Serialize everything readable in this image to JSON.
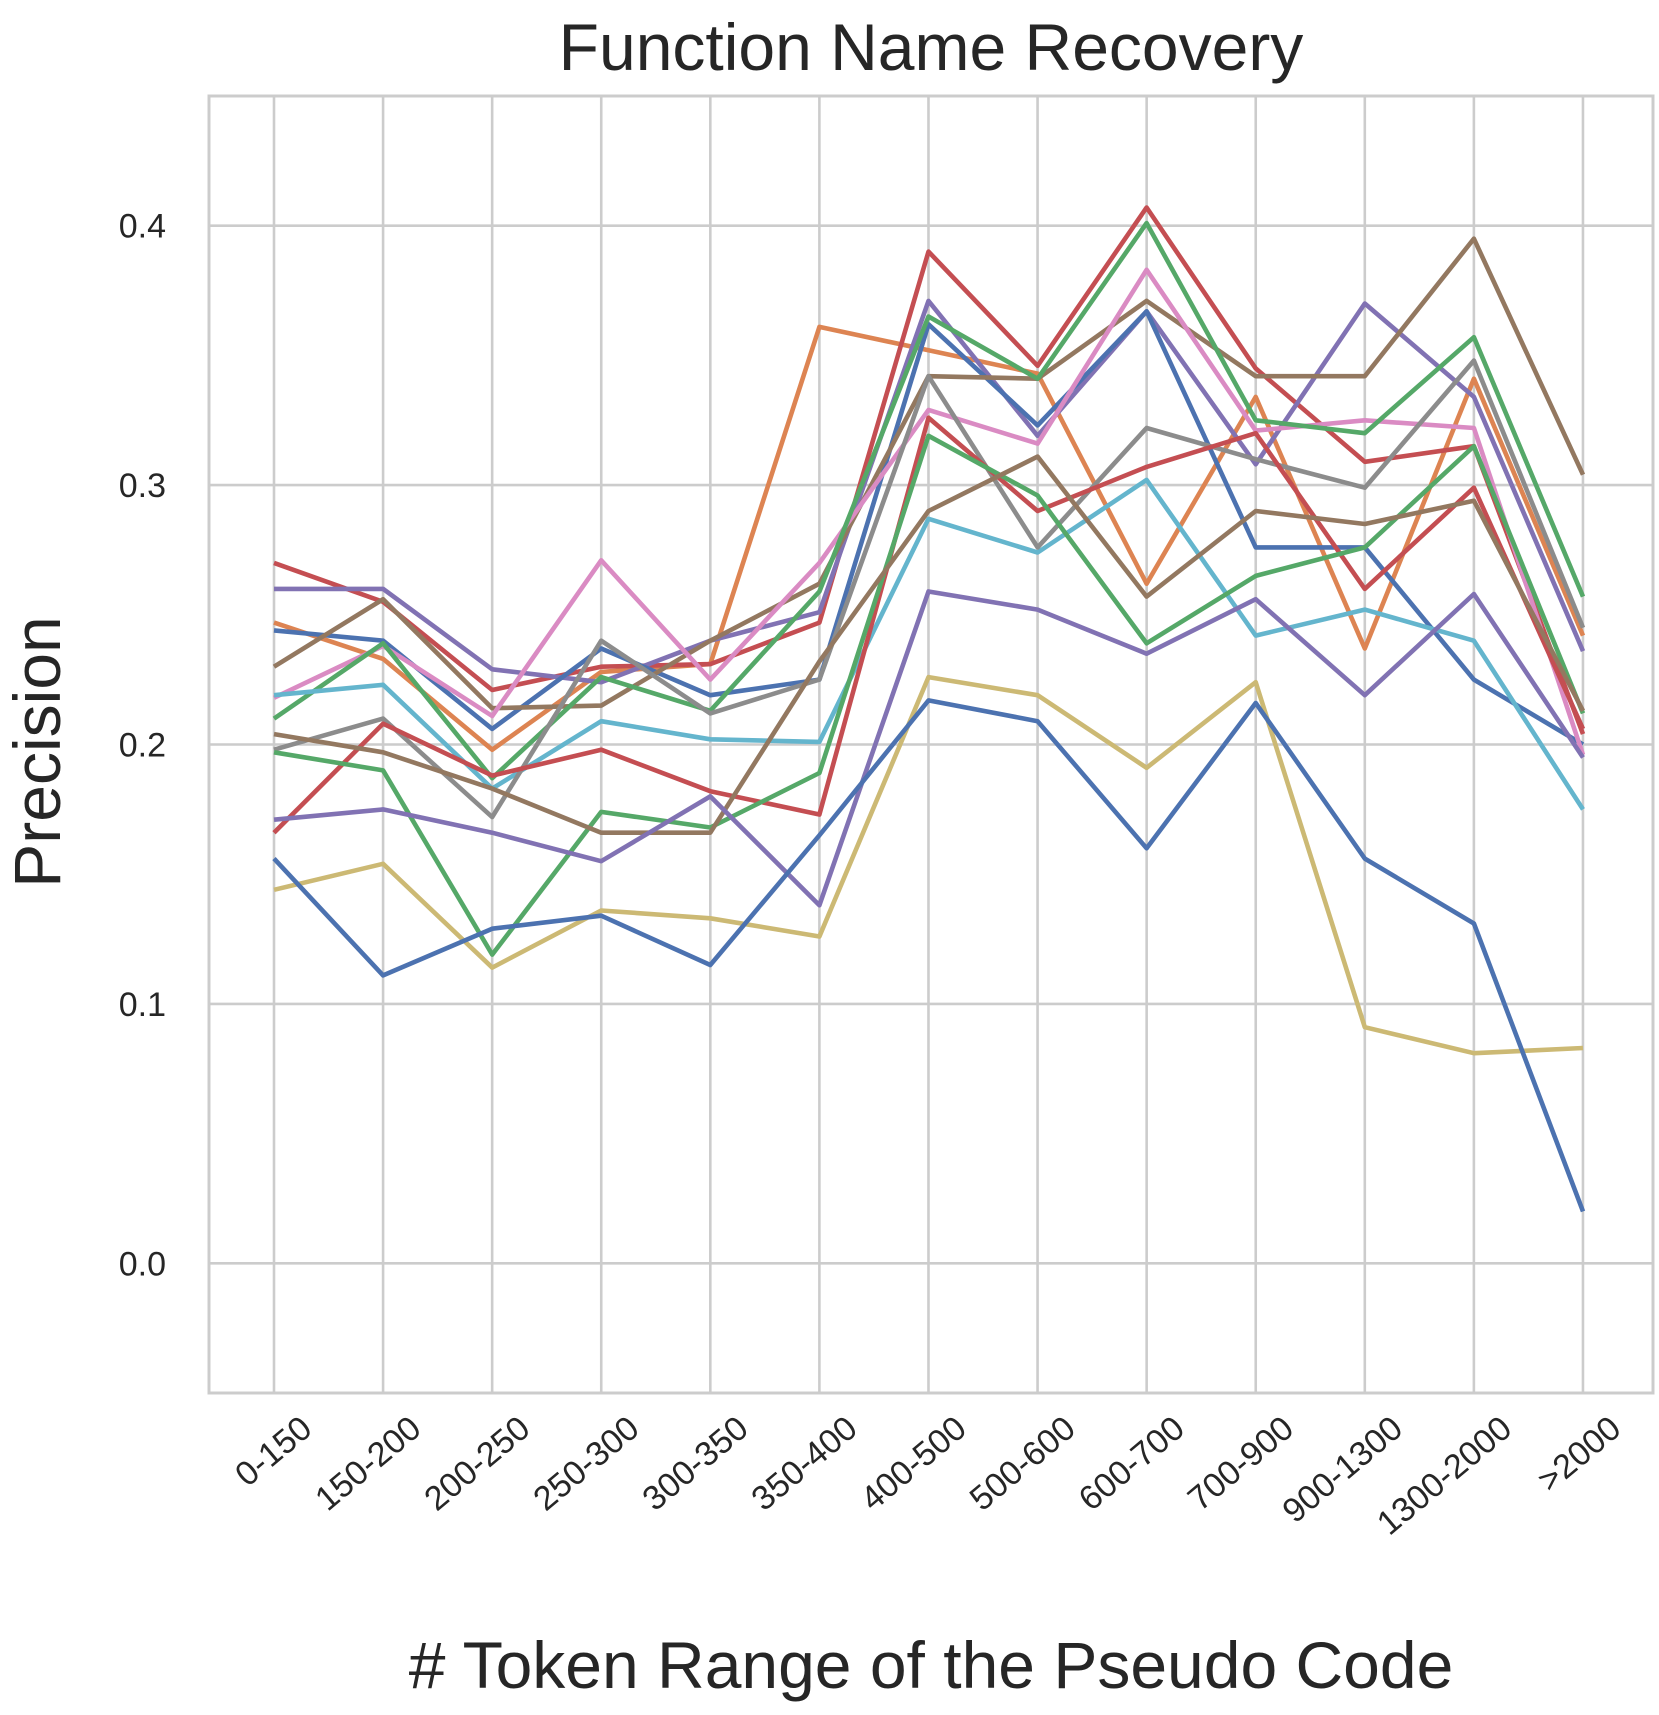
{
  "chart_data": {
    "type": "line",
    "title": "Function Name Recovery",
    "xlabel": "# Token Range of the Pseudo Code",
    "ylabel": "Precision",
    "categories": [
      "0-150",
      "150-200",
      "200-250",
      "250-300",
      "300-350",
      "350-400",
      "400-500",
      "500-600",
      "600-700",
      "700-900",
      "900-1300",
      "1300-2000",
      ">2000"
    ],
    "ylim": [
      -0.05,
      0.45
    ],
    "yticks": [
      0.0,
      0.1,
      0.2,
      0.3,
      0.4
    ],
    "ytick_labels": [
      "0.0",
      "0.1",
      "0.2",
      "0.3",
      "0.4"
    ],
    "grid": true,
    "legend": "none",
    "series": [
      {
        "color": "#dd8452",
        "values": [
          0.247,
          0.233,
          0.198,
          0.228,
          0.231,
          0.361,
          0.352,
          0.343,
          0.262,
          0.334,
          0.237,
          0.341,
          0.242
        ]
      },
      {
        "color": "#c44e52",
        "values": [
          0.27,
          0.255,
          0.221,
          0.23,
          0.231,
          0.247,
          0.39,
          0.346,
          0.407,
          0.345,
          0.309,
          0.315,
          0.204
        ]
      },
      {
        "color": "#8172b3",
        "values": [
          0.26,
          0.26,
          0.229,
          0.224,
          0.24,
          0.251,
          0.371,
          0.319,
          0.367,
          0.308,
          0.37,
          0.334,
          0.236
        ]
      },
      {
        "color": "#4c72b0",
        "values": [
          0.244,
          0.24,
          0.206,
          0.237,
          0.219,
          0.225,
          0.362,
          0.323,
          0.367,
          0.276,
          0.276,
          0.225,
          0.2
        ]
      },
      {
        "color": "#937860",
        "values": [
          0.23,
          0.256,
          0.214,
          0.215,
          0.24,
          0.262,
          0.342,
          0.341,
          0.371,
          0.342,
          0.342,
          0.395,
          0.304
        ]
      },
      {
        "color": "#da8bc3",
        "values": [
          0.218,
          0.238,
          0.211,
          0.271,
          0.225,
          0.27,
          0.329,
          0.316,
          0.383,
          0.321,
          0.325,
          0.322,
          0.196
        ]
      },
      {
        "color": "#55a868",
        "values": [
          0.21,
          0.239,
          0.187,
          0.226,
          0.213,
          0.259,
          0.365,
          0.341,
          0.401,
          0.325,
          0.32,
          0.357,
          0.257
        ]
      },
      {
        "color": "#64b5cd",
        "values": [
          0.219,
          0.223,
          0.183,
          0.209,
          0.202,
          0.201,
          0.287,
          0.274,
          0.302,
          0.242,
          0.252,
          0.24,
          0.175
        ]
      },
      {
        "color": "#8c8c8c",
        "values": [
          0.198,
          0.21,
          0.172,
          0.24,
          0.212,
          0.225,
          0.342,
          0.276,
          0.322,
          0.31,
          0.299,
          0.348,
          0.245
        ]
      },
      {
        "color": "#c44e52",
        "values": [
          0.166,
          0.208,
          0.188,
          0.198,
          0.182,
          0.173,
          0.326,
          0.29,
          0.307,
          0.32,
          0.26,
          0.299,
          0.206
        ]
      },
      {
        "color": "#55a868",
        "values": [
          0.197,
          0.19,
          0.119,
          0.174,
          0.168,
          0.189,
          0.319,
          0.296,
          0.239,
          0.265,
          0.276,
          0.315,
          0.212
        ]
      },
      {
        "color": "#937860",
        "values": [
          0.204,
          0.197,
          0.183,
          0.166,
          0.166,
          0.232,
          0.29,
          0.311,
          0.257,
          0.29,
          0.285,
          0.294,
          0.213
        ]
      },
      {
        "color": "#8172b3",
        "values": [
          0.171,
          0.175,
          0.166,
          0.155,
          0.18,
          0.138,
          0.259,
          0.252,
          0.235,
          0.256,
          0.219,
          0.258,
          0.195
        ]
      },
      {
        "color": "#ccb974",
        "values": [
          0.144,
          0.154,
          0.114,
          0.136,
          0.133,
          0.126,
          0.226,
          0.219,
          0.191,
          0.224,
          0.091,
          0.081,
          0.083
        ]
      },
      {
        "color": "#4c72b0",
        "values": [
          0.156,
          0.111,
          0.129,
          0.134,
          0.115,
          0.165,
          0.217,
          0.209,
          0.16,
          0.216,
          0.156,
          0.131,
          0.02
        ]
      }
    ]
  }
}
